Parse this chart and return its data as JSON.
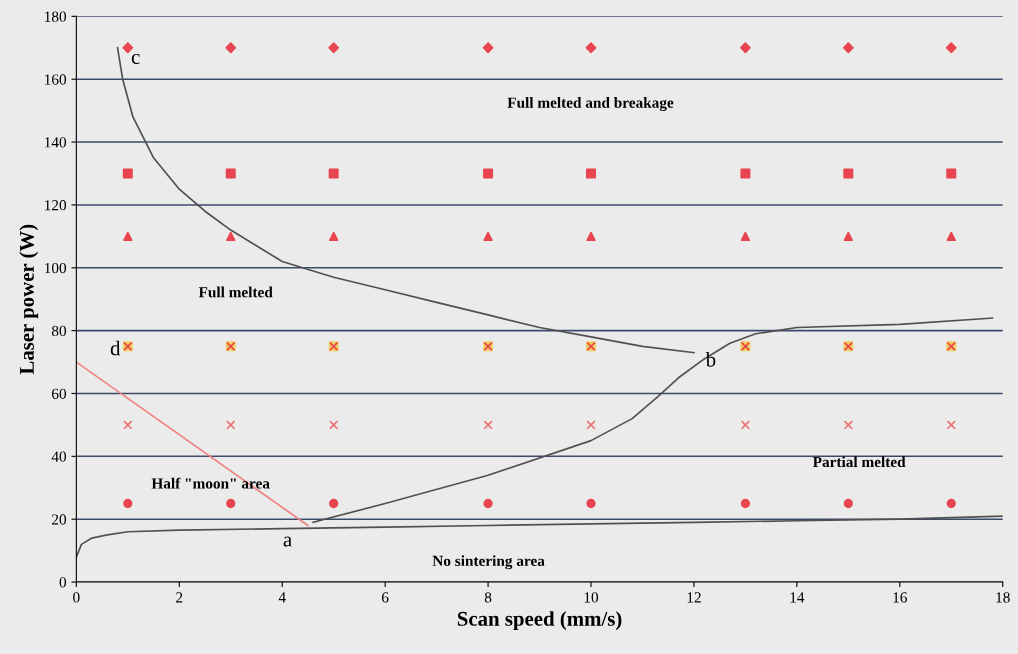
{
  "chart_data": {
    "type": "scatter",
    "xlabel": "Scan speed (mm/s)",
    "ylabel": "Laser power (W)",
    "xlim": [
      0,
      18
    ],
    "ylim": [
      0,
      180
    ],
    "xticks": [
      0,
      2,
      4,
      6,
      8,
      10,
      12,
      14,
      16,
      18
    ],
    "yticks": [
      0,
      20,
      40,
      60,
      80,
      100,
      120,
      140,
      160,
      180
    ],
    "grid": "y",
    "legend": false,
    "series": [
      {
        "type": "scatter",
        "marker": "diamond",
        "color": "#e8454f",
        "x": [
          1,
          3,
          5,
          8,
          10,
          13,
          15,
          17
        ],
        "values": [
          170,
          170,
          170,
          170,
          170,
          170,
          170,
          170
        ]
      },
      {
        "type": "scatter",
        "marker": "square",
        "color": "#e8454f",
        "x": [
          1,
          3,
          5,
          8,
          10,
          13,
          15,
          17
        ],
        "values": [
          130,
          130,
          130,
          130,
          130,
          130,
          130,
          130
        ]
      },
      {
        "type": "scatter",
        "marker": "triangle",
        "color": "#e8454f",
        "x": [
          1,
          3,
          5,
          8,
          10,
          13,
          15,
          17
        ],
        "values": [
          110,
          110,
          110,
          110,
          110,
          110,
          110,
          110
        ]
      },
      {
        "type": "scatter",
        "marker": "square",
        "color": "#f2d060",
        "x": [
          1,
          3,
          5,
          8,
          10,
          13,
          15,
          17
        ],
        "values": [
          75,
          75,
          75,
          75,
          75,
          75,
          75,
          75
        ]
      },
      {
        "type": "scatter",
        "marker": "cross",
        "color": "#e8454f",
        "x": [
          1,
          3,
          5,
          8,
          10,
          13,
          15,
          17
        ],
        "values": [
          75,
          75,
          75,
          75,
          75,
          75,
          75,
          75
        ]
      },
      {
        "type": "scatter",
        "marker": "cross",
        "color": "#ec7070",
        "x": [
          1,
          3,
          5,
          8,
          10,
          13,
          15,
          17
        ],
        "values": [
          50,
          50,
          50,
          50,
          50,
          50,
          50,
          50
        ]
      },
      {
        "type": "scatter",
        "marker": "circle",
        "color": "#e8454f",
        "x": [
          1,
          3,
          5,
          8,
          10,
          13,
          15,
          17
        ],
        "values": [
          25,
          25,
          25,
          25,
          25,
          25,
          25,
          25
        ]
      },
      {
        "type": "line",
        "marker": "none",
        "color": "#505050",
        "x": [
          0.8,
          0.9,
          1.1,
          1.5,
          2,
          2.5,
          3,
          4,
          5,
          6,
          7,
          8,
          9,
          10,
          11,
          12
        ],
        "values": [
          170,
          160,
          148,
          135,
          125,
          118,
          112,
          102,
          97,
          93,
          89,
          85,
          81,
          78,
          75,
          73
        ]
      },
      {
        "type": "line",
        "marker": "none",
        "color": "#505050",
        "x": [
          4.6,
          6,
          8,
          10,
          10.8,
          11.3,
          11.7,
          12.2,
          12.7,
          13.2,
          14,
          16,
          17.8
        ],
        "values": [
          19,
          25,
          34,
          45,
          52,
          59,
          65,
          71,
          76,
          79,
          81,
          82,
          84
        ]
      },
      {
        "type": "line",
        "marker": "none",
        "color": "#505050",
        "x": [
          0,
          0.1,
          0.3,
          0.6,
          1,
          2,
          4,
          6,
          8,
          10,
          12,
          14,
          16,
          18
        ],
        "values": [
          8,
          12,
          14,
          15,
          16,
          16.5,
          17,
          17.5,
          18,
          18.5,
          19,
          19.5,
          20,
          21
        ]
      },
      {
        "type": "line",
        "marker": "none",
        "color": "#f08080",
        "x": [
          0,
          4.5
        ],
        "values": [
          70,
          18
        ]
      }
    ],
    "annotations": [
      "c",
      "b",
      "a",
      "d",
      "Full melted and breakage",
      "Full melted",
      "Half \"moon\" area",
      "Partial melted",
      "No sintering area"
    ]
  }
}
